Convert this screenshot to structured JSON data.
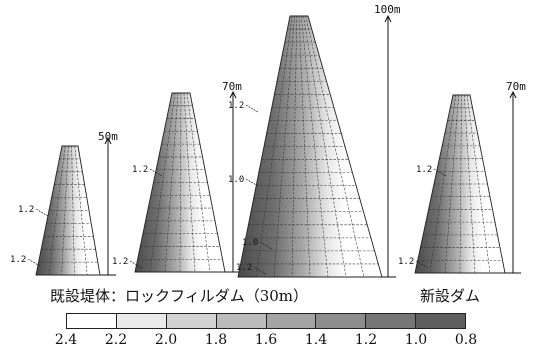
{
  "dams": [
    {
      "id": "dam-50m",
      "height_label": "50m",
      "contours": [
        "1.2",
        "1.2"
      ]
    },
    {
      "id": "dam-70m",
      "height_label": "70m",
      "contours": [
        "1.2",
        "1.2"
      ]
    },
    {
      "id": "dam-100m",
      "height_label": "100m",
      "contours": [
        "1.2",
        "1.0",
        "1.0",
        "1.2"
      ]
    },
    {
      "id": "dam-new",
      "height_label": "70m",
      "contours": [
        "1.2",
        "1.2"
      ]
    }
  ],
  "captions": {
    "left": "既設堤体：ロックフィルダム（30m）",
    "right": "新設ダム"
  },
  "scale": {
    "ticks": [
      "2.4",
      "2.2",
      "2.0",
      "1.8",
      "1.6",
      "1.4",
      "1.2",
      "1.0",
      "0.8"
    ],
    "colors": [
      "#ffffff",
      "#e9e9e9",
      "#d2d2d2",
      "#bbbbbb",
      "#a4a4a4",
      "#8d8d8d",
      "#767676",
      "#5e5e5e"
    ]
  }
}
